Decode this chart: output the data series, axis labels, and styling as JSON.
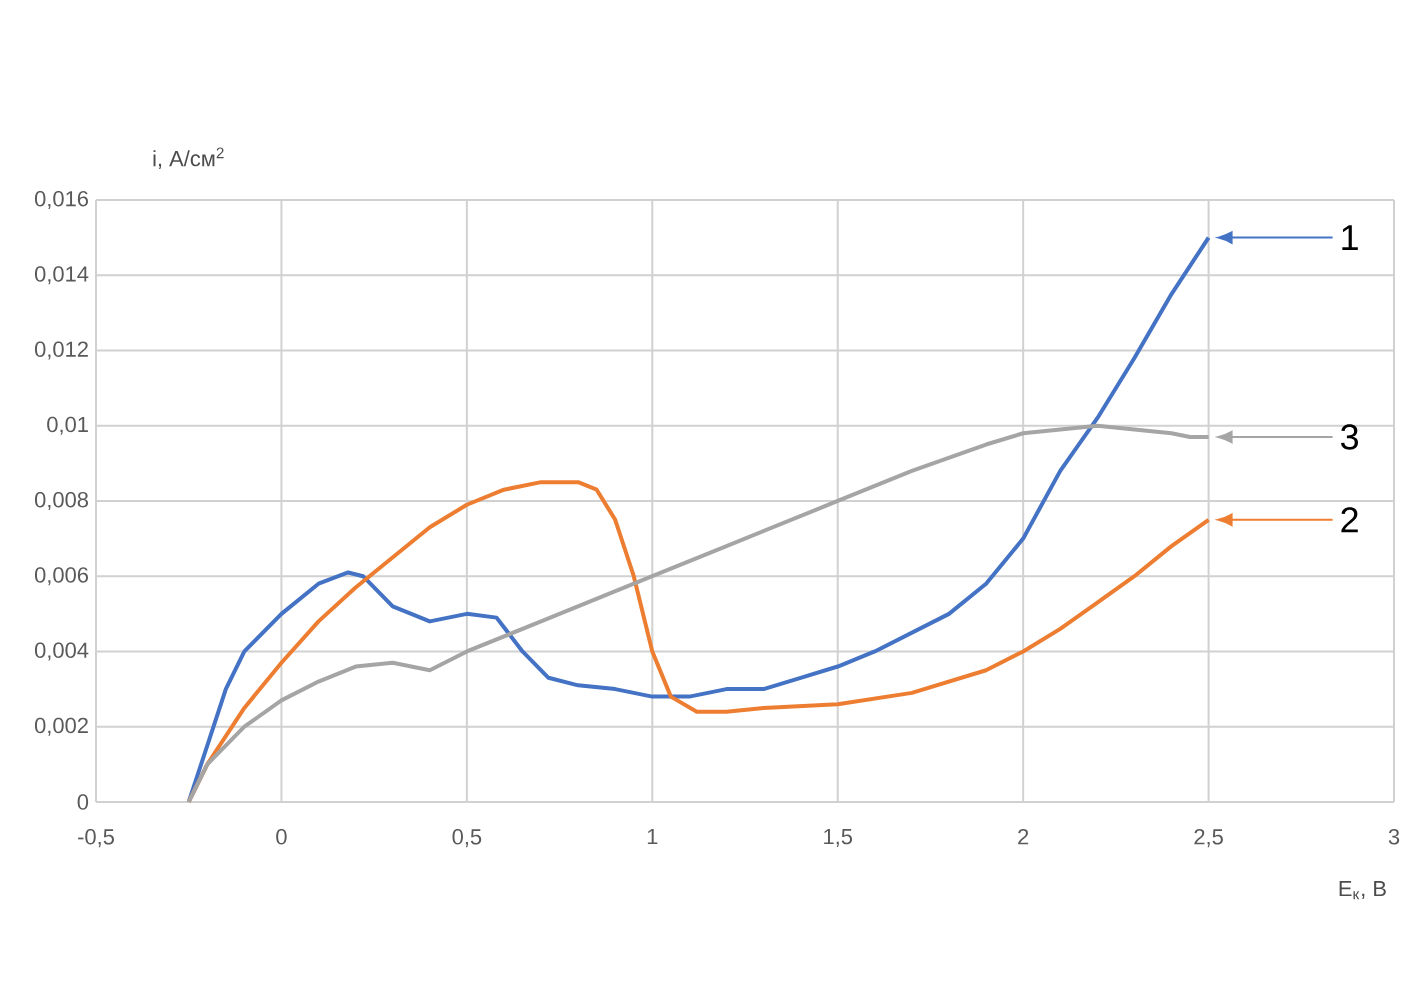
{
  "chart_data": {
    "type": "line",
    "xlabel": "E$_{к}$, В",
    "ylabel": "i, А/см$^{2}$",
    "x": [
      -0.25,
      -0.2,
      -0.15,
      -0.1,
      0,
      0.1,
      0.18,
      0.22,
      0.3,
      0.4,
      0.5,
      0.58,
      0.65,
      0.72,
      0.8,
      0.9,
      1.0,
      1.1,
      1.2,
      1.3,
      1.4,
      1.5,
      1.6,
      1.7,
      1.8,
      1.9,
      2.0,
      2.1,
      2.2,
      2.3,
      2.4,
      2.5
    ],
    "series": [
      {
        "name": "1",
        "color": "#4472c4",
        "values": [
          0,
          0.0015,
          0.003,
          0.004,
          0.005,
          0.0058,
          0.0061,
          0.006,
          0.0052,
          0.0048,
          0.005,
          0.0049,
          0.004,
          0.0033,
          0.0031,
          0.003,
          0.0028,
          0.0028,
          0.003,
          0.003,
          0.0033,
          0.0036,
          0.004,
          0.0045,
          0.005,
          0.0058,
          0.007,
          0.0088,
          0.0102,
          0.0118,
          0.0135,
          0.015
        ]
      },
      {
        "name": "2",
        "color": "#ed7d31",
        "x": [
          -0.25,
          -0.2,
          -0.1,
          0,
          0.1,
          0.2,
          0.3,
          0.4,
          0.5,
          0.6,
          0.7,
          0.8,
          0.85,
          0.9,
          0.95,
          1.0,
          1.05,
          1.12,
          1.2,
          1.3,
          1.5,
          1.7,
          1.9,
          2.0,
          2.1,
          2.2,
          2.3,
          2.4,
          2.5
        ],
        "values": [
          0,
          0.001,
          0.0025,
          0.0037,
          0.0048,
          0.0057,
          0.0065,
          0.0073,
          0.0079,
          0.0083,
          0.0085,
          0.0085,
          0.0083,
          0.0075,
          0.006,
          0.004,
          0.0028,
          0.0024,
          0.0024,
          0.0025,
          0.0026,
          0.0029,
          0.0035,
          0.004,
          0.0046,
          0.0053,
          0.006,
          0.0068,
          0.0075
        ]
      },
      {
        "name": "3",
        "color": "#a5a5a5",
        "x": [
          -0.25,
          -0.2,
          -0.1,
          0,
          0.1,
          0.2,
          0.3,
          0.4,
          0.5,
          0.7,
          1.0,
          1.2,
          1.5,
          1.7,
          1.9,
          2.0,
          2.1,
          2.2,
          2.3,
          2.4,
          2.45,
          2.5
        ],
        "values": [
          0,
          0.001,
          0.002,
          0.0027,
          0.0032,
          0.0036,
          0.0037,
          0.0035,
          0.004,
          0.0048,
          0.006,
          0.0068,
          0.008,
          0.0088,
          0.0095,
          0.0098,
          0.0099,
          0.01,
          0.0099,
          0.0098,
          0.0097,
          0.0097
        ]
      }
    ],
    "xlim": [
      -0.5,
      3
    ],
    "ylim": [
      0,
      0.016
    ],
    "xticks": [
      {
        "value": -0.5,
        "label": "-0,5"
      },
      0,
      {
        "value": 0.5,
        "label": "0,5"
      },
      1,
      {
        "value": 1.5,
        "label": "1,5"
      },
      2,
      {
        "value": 2.5,
        "label": "2,5"
      },
      3
    ],
    "yticks": [
      0,
      {
        "value": 0.002,
        "label": "0,002"
      },
      {
        "value": 0.004,
        "label": "0,004"
      },
      {
        "value": 0.006,
        "label": "0,006"
      },
      {
        "value": 0.008,
        "label": "0,008"
      },
      {
        "value": 0.01,
        "label": "0,01"
      },
      {
        "value": 0.012,
        "label": "0,012"
      },
      {
        "value": 0.014,
        "label": "0,014"
      },
      {
        "value": 0.016,
        "label": "0,016"
      }
    ],
    "grid": true,
    "legend": "right",
    "marker": "none",
    "line_style": "solid"
  }
}
